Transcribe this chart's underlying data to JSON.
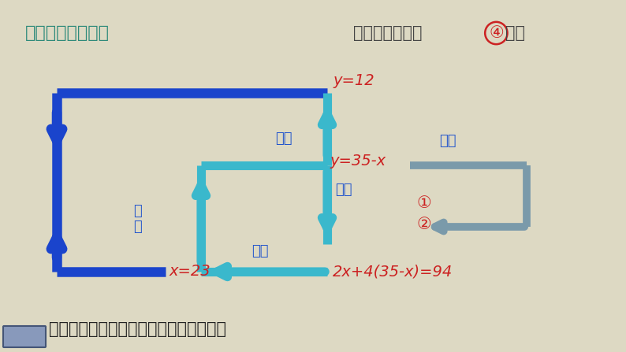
{
  "bg_color": "#ddd9c3",
  "title_left": "想一想：由方程组",
  "title_color": "#2d8a7a",
  "title_right1": "是怎样得出方程 ",
  "title_4": "④",
  "title_right2": "的？",
  "title_right_color": "#444444",
  "bottom_text": "从中你体会到怎样解二元一次方程组吗？",
  "bottom_color": "#222222",
  "eq_color": "#cc2222",
  "label_color": "#2255cc",
  "blue": "#1a44cc",
  "cyan": "#3ab8cc",
  "gray": "#7a9aaa",
  "circ4_color": "#cc2222",
  "lbl_dai_ru": "代入",
  "lbl_bian_xing": "变形",
  "lbl_qiu_jie1": "求解",
  "lbl_qiu_jie2": "求解",
  "lbl_dai_ru2": "代\n入",
  "eq_y12": "y=12",
  "eq_y35x": "y=35-x",
  "eq_x23": "x=23",
  "eq_long": "2x+4(35-x)=94",
  "circ1": "①",
  "circ2": "②"
}
